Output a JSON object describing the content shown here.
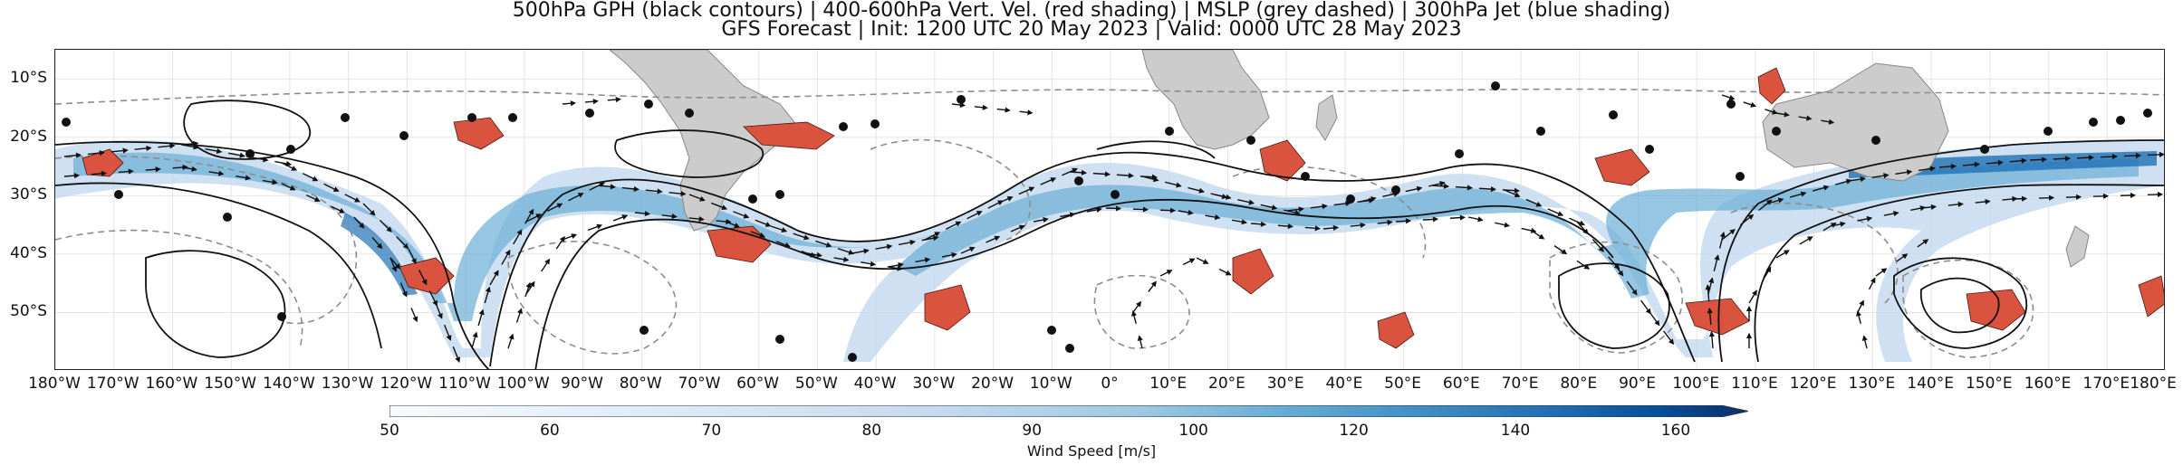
{
  "title": {
    "line1": "500hPa GPH (black contours) | 400-600hPa Vert. Vel. (red shading) | MSLP (grey dashed) | 300hPa Jet (blue shading)",
    "line2": "GFS Forecast | Init: 1200 UTC 20 May 2023 | Valid: 0000 UTC 28 May 2023"
  },
  "map": {
    "lat_labels": [
      "10°S",
      "20°S",
      "30°S",
      "40°S",
      "50°S"
    ],
    "lat_values": [
      -10,
      -20,
      -30,
      -40,
      -50
    ],
    "lat_range": [
      -60,
      -5
    ],
    "lon_labels": [
      "180°W",
      "170°W",
      "160°W",
      "150°W",
      "140°W",
      "130°W",
      "120°W",
      "110°W",
      "100°W",
      "90°W",
      "80°W",
      "70°W",
      "60°W",
      "50°W",
      "40°W",
      "30°W",
      "20°W",
      "10°W",
      "0°",
      "10°E",
      "20°E",
      "30°E",
      "40°E",
      "50°E",
      "60°E",
      "70°E",
      "80°E",
      "90°E",
      "100°E",
      "110°E",
      "120°E",
      "130°E",
      "140°E",
      "150°E",
      "160°E",
      "170°E",
      "180°E"
    ],
    "lon_values": [
      -180,
      -170,
      -160,
      -150,
      -140,
      -130,
      -120,
      -110,
      -100,
      -90,
      -80,
      -70,
      -60,
      -50,
      -40,
      -30,
      -20,
      -10,
      0,
      10,
      20,
      30,
      40,
      50,
      60,
      70,
      80,
      90,
      100,
      110,
      120,
      130,
      140,
      150,
      160,
      170,
      180
    ],
    "lon_range": [
      -180,
      180
    ],
    "colors": {
      "land": "#cccccc",
      "gph_contour": "#111111",
      "mslp_contour": "#8c8c8c",
      "vert_vel": "#d9533f",
      "jet_light": "#c6dbef",
      "jet_mid": "#6baed6",
      "jet_dark": "#08306b",
      "grid": "#e4e4e4"
    }
  },
  "colorbar": {
    "ticks": [
      "50",
      "60",
      "70",
      "80",
      "90",
      "100",
      "120",
      "140",
      "160"
    ],
    "tick_values": [
      50,
      60,
      70,
      80,
      90,
      100,
      120,
      140,
      160
    ],
    "label": "Wind Speed [m/s]",
    "colors": [
      "#f7fbff",
      "#deebf7",
      "#c6dbef",
      "#9ecae1",
      "#6baed6",
      "#4292c6",
      "#2171b5",
      "#08519c",
      "#08306b"
    ]
  }
}
